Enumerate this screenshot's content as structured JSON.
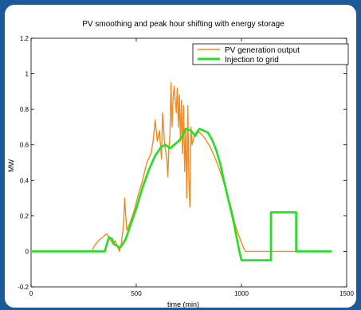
{
  "chart_data": {
    "type": "line",
    "title": "PV smoothing and peak hour shifting with energy storage",
    "xlabel": "time (min)",
    "ylabel": "MW",
    "xlim": [
      0,
      1500
    ],
    "ylim": [
      -0.2,
      1.2
    ],
    "xticks": [
      0,
      500,
      1000,
      1500
    ],
    "yticks": [
      -0.2,
      0,
      0.2,
      0.4,
      0.6,
      0.8,
      1,
      1.2
    ],
    "ytick_labels": [
      "-0.2",
      "0",
      "0.2",
      "0.4",
      "0.6",
      "0.8",
      "1",
      "1.2"
    ],
    "grid": false,
    "legend_position": "top-right",
    "series": [
      {
        "name": "PV generation output",
        "color": "#f28a1e",
        "points": [
          [
            0,
            0
          ],
          [
            290,
            0
          ],
          [
            300,
            0.03
          ],
          [
            320,
            0.06
          ],
          [
            340,
            0.08
          ],
          [
            360,
            0.1
          ],
          [
            370,
            0.08
          ],
          [
            380,
            0.06
          ],
          [
            390,
            0.04
          ],
          [
            400,
            0.06
          ],
          [
            410,
            0.03
          ],
          [
            420,
            0.0
          ],
          [
            430,
            0.05
          ],
          [
            440,
            0.16
          ],
          [
            445,
            0.3
          ],
          [
            450,
            0.2
          ],
          [
            455,
            0.12
          ],
          [
            470,
            0.16
          ],
          [
            490,
            0.23
          ],
          [
            510,
            0.32
          ],
          [
            530,
            0.4
          ],
          [
            550,
            0.5
          ],
          [
            570,
            0.55
          ],
          [
            580,
            0.62
          ],
          [
            590,
            0.74
          ],
          [
            600,
            0.62
          ],
          [
            610,
            0.68
          ],
          [
            620,
            0.52
          ],
          [
            625,
            0.78
          ],
          [
            635,
            0.6
          ],
          [
            645,
            0.52
          ],
          [
            650,
            0.42
          ],
          [
            655,
            0.58
          ],
          [
            660,
            0.65
          ],
          [
            665,
            0.95
          ],
          [
            670,
            0.7
          ],
          [
            675,
            0.86
          ],
          [
            680,
            0.93
          ],
          [
            690,
            0.78
          ],
          [
            695,
            0.92
          ],
          [
            700,
            0.7
          ],
          [
            705,
            0.88
          ],
          [
            710,
            0.62
          ],
          [
            715,
            0.85
          ],
          [
            720,
            0.55
          ],
          [
            725,
            0.82
          ],
          [
            730,
            0.45
          ],
          [
            735,
            0.68
          ],
          [
            740,
            0.3
          ],
          [
            745,
            0.82
          ],
          [
            750,
            0.4
          ],
          [
            755,
            0.25
          ],
          [
            760,
            0.7
          ],
          [
            765,
            0.6
          ],
          [
            775,
            0.65
          ],
          [
            790,
            0.68
          ],
          [
            810,
            0.66
          ],
          [
            830,
            0.63
          ],
          [
            850,
            0.59
          ],
          [
            870,
            0.54
          ],
          [
            890,
            0.48
          ],
          [
            910,
            0.41
          ],
          [
            930,
            0.33
          ],
          [
            950,
            0.25
          ],
          [
            970,
            0.15
          ],
          [
            990,
            0.08
          ],
          [
            1000,
            0.05
          ],
          [
            1010,
            0.02
          ],
          [
            1020,
            0.0
          ],
          [
            1150,
            0.0
          ],
          [
            1260,
            0.0
          ]
        ]
      },
      {
        "name": "Injection to grid",
        "color": "#22e022",
        "points": [
          [
            0,
            0
          ],
          [
            330,
            0
          ],
          [
            350,
            0.0
          ],
          [
            360,
            0.04
          ],
          [
            370,
            0.08
          ],
          [
            385,
            0.07
          ],
          [
            395,
            0.04
          ],
          [
            410,
            0.03
          ],
          [
            420,
            0.02
          ],
          [
            430,
            0.03
          ],
          [
            450,
            0.07
          ],
          [
            470,
            0.14
          ],
          [
            500,
            0.24
          ],
          [
            530,
            0.36
          ],
          [
            560,
            0.46
          ],
          [
            590,
            0.54
          ],
          [
            620,
            0.59
          ],
          [
            640,
            0.6
          ],
          [
            660,
            0.58
          ],
          [
            680,
            0.6
          ],
          [
            700,
            0.62
          ],
          [
            720,
            0.65
          ],
          [
            735,
            0.69
          ],
          [
            760,
            0.68
          ],
          [
            780,
            0.65
          ],
          [
            800,
            0.69
          ],
          [
            820,
            0.68
          ],
          [
            840,
            0.67
          ],
          [
            860,
            0.63
          ],
          [
            880,
            0.57
          ],
          [
            900,
            0.49
          ],
          [
            920,
            0.38
          ],
          [
            940,
            0.28
          ],
          [
            960,
            0.18
          ],
          [
            980,
            0.06
          ],
          [
            990,
            0.0
          ],
          [
            1000,
            -0.05
          ],
          [
            1140,
            -0.05
          ],
          [
            1140,
            0.22
          ],
          [
            1260,
            0.22
          ],
          [
            1260,
            0.0
          ],
          [
            1430,
            0.0
          ]
        ]
      }
    ]
  }
}
